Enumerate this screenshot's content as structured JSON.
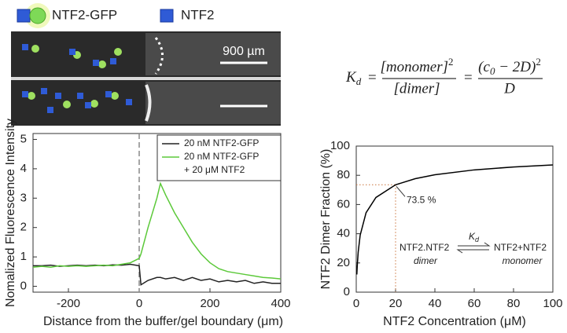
{
  "figure": {
    "legend_gfp": "NTF2-GFP",
    "legend_ntf2": "NTF2",
    "scale_bar": "900 µm",
    "equation": {
      "k": "K",
      "k_sub": "d",
      "num1": "[monomer]",
      "num1_sup": "2",
      "den1": "[dimer]",
      "num2": "(c",
      "num2_sub": "0",
      "num2_rest": " − 2D)",
      "num2_sup": "2",
      "den2": "D",
      "eq": "="
    }
  },
  "chart_data": [
    {
      "type": "line",
      "xlabel": "Distance from the buffer/gel boundary  (μm)",
      "ylabel": "Nomalized Fluorescence Intensity",
      "x": [
        -300,
        -275,
        -250,
        -225,
        -200,
        -175,
        -150,
        -125,
        -100,
        -75,
        -50,
        -25,
        0,
        5,
        25,
        50,
        60,
        75,
        100,
        125,
        150,
        175,
        200,
        225,
        250,
        275,
        300,
        325,
        350,
        375,
        400
      ],
      "series": [
        {
          "name": "20 nM NTF2-GFP",
          "color": "#222222",
          "values": [
            0.7,
            0.7,
            0.72,
            0.68,
            0.7,
            0.72,
            0.7,
            0.72,
            0.7,
            0.73,
            0.72,
            0.75,
            0.7,
            0.05,
            0.2,
            0.3,
            0.3,
            0.25,
            0.3,
            0.2,
            0.3,
            0.2,
            0.25,
            0.15,
            0.2,
            0.15,
            0.2,
            0.1,
            0.15,
            0.1,
            0.1
          ]
        },
        {
          "name": "20 nM NTF2-GFP\n+ 20 μM NTF2",
          "color": "#5cc93a",
          "values": [
            0.65,
            0.68,
            0.65,
            0.7,
            0.68,
            0.7,
            0.68,
            0.7,
            0.72,
            0.7,
            0.75,
            0.8,
            0.95,
            1.1,
            2.0,
            3.0,
            3.5,
            3.1,
            2.5,
            2.0,
            1.5,
            1.1,
            0.8,
            0.6,
            0.5,
            0.45,
            0.4,
            0.35,
            0.3,
            0.28,
            0.25
          ]
        }
      ],
      "xlim": [
        -300,
        400
      ],
      "xticks": [
        -200,
        0,
        200,
        400
      ],
      "ylim": [
        -0.2,
        5.2
      ],
      "yticks": [
        0,
        1,
        2,
        3,
        4,
        5
      ],
      "vline": 0,
      "legend": "upper right"
    },
    {
      "type": "line",
      "xlabel": "NTF2 Concentration (μM)",
      "ylabel": "NTF2 Dimer Fraction (%)",
      "x": [
        0.3,
        0.5,
        1,
        2,
        5,
        10,
        20,
        30,
        40,
        60,
        80,
        100
      ],
      "series": [
        {
          "name": null,
          "color": "#000000",
          "values": [
            12.1,
            17.7,
            27.5,
            39.0,
            54.4,
            64.8,
            73.5,
            77.7,
            80.4,
            83.7,
            85.7,
            87.1
          ]
        }
      ],
      "xlim": [
        0,
        100
      ],
      "xticks": [
        0,
        20,
        40,
        60,
        80,
        100
      ],
      "ylim": [
        0,
        100
      ],
      "yticks": [
        0,
        20,
        40,
        60,
        80,
        100
      ],
      "annotation": {
        "x": 20,
        "y": 73.5,
        "label": "73.5 %"
      },
      "reaction": {
        "left": "NTF2.NTF2",
        "left_sub": "dimer",
        "right": "NTF2+NTF2",
        "right_sub": "monomer",
        "k": "K",
        "k_sub": "d"
      }
    }
  ]
}
